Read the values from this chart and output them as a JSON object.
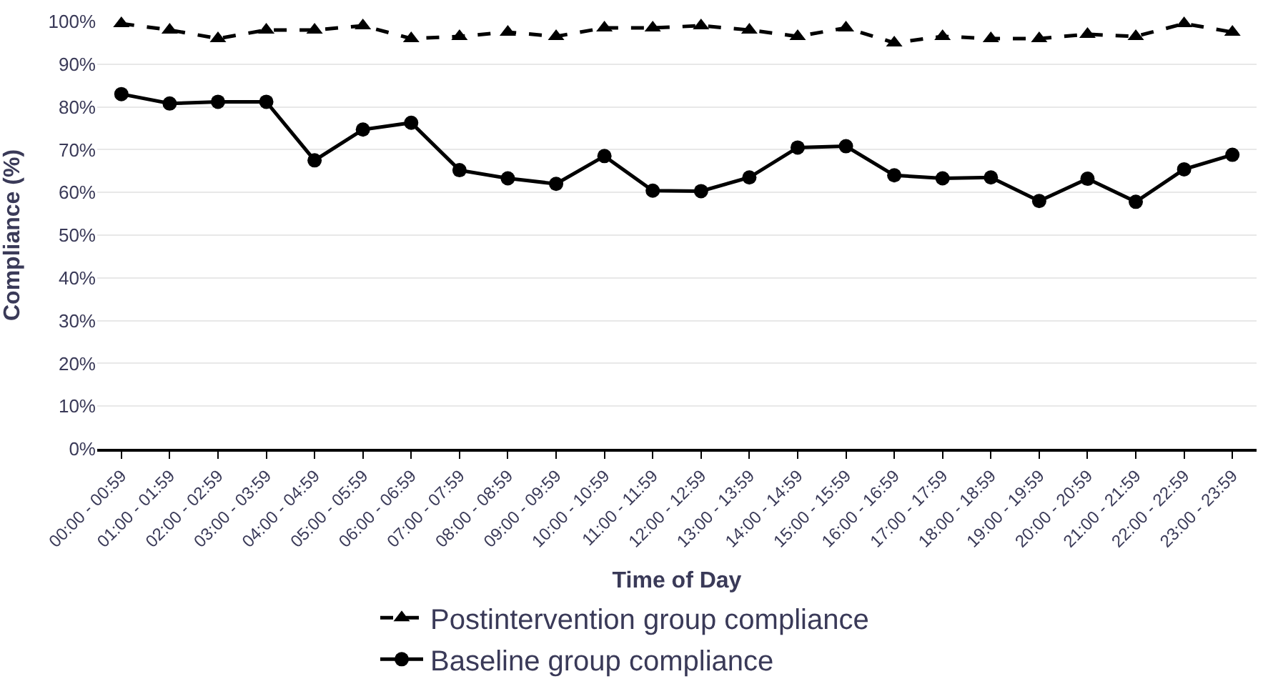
{
  "chart_data": {
    "type": "line",
    "xlabel": "Time of Day",
    "ylabel": "Compliance (%)",
    "categories": [
      "00:00 - 00:59",
      "01:00 - 01:59",
      "02:00 - 02:59",
      "03:00 - 03:59",
      "04:00 - 04:59",
      "05:00 - 05:59",
      "06:00 - 06:59",
      "07:00 - 07:59",
      "08:00 - 08:59",
      "09:00 - 09:59",
      "10:00 - 10:59",
      "11:00 - 11:59",
      "12:00 - 12:59",
      "13:00 - 13:59",
      "14:00 - 14:59",
      "15:00 - 15:59",
      "16:00 - 16:59",
      "17:00 - 17:59",
      "18:00 - 18:59",
      "19:00 - 19:59",
      "20:00 - 20:59",
      "21:00 - 21:59",
      "22:00 - 22:59",
      "23:00 - 23:59"
    ],
    "series": [
      {
        "name": "Postintervention group compliance",
        "color": "#000000",
        "marker": "triangle",
        "line_style": "dashed",
        "values": [
          99.5,
          98,
          96,
          98,
          98,
          99,
          96,
          96.5,
          97.5,
          96.5,
          98.5,
          98.5,
          99,
          98,
          96.5,
          98.5,
          95,
          96.5,
          96,
          96,
          97,
          96.5,
          99.5,
          97.5
        ]
      },
      {
        "name": "Baseline group compliance",
        "color": "#000000",
        "marker": "circle",
        "line_style": "solid",
        "values": [
          83,
          80.8,
          81.2,
          81.2,
          67.5,
          74.7,
          76.3,
          65.2,
          63.3,
          62,
          68.5,
          60.4,
          60.3,
          63.5,
          70.5,
          70.8,
          64,
          63.3,
          63.5,
          58,
          63.2,
          57.8,
          65.4,
          68.8
        ]
      }
    ],
    "ylim": [
      0,
      100
    ],
    "yticks": [
      {
        "value": 0,
        "label": "0%"
      },
      {
        "value": 10,
        "label": "10%"
      },
      {
        "value": 20,
        "label": "20%"
      },
      {
        "value": 30,
        "label": "30%"
      },
      {
        "value": 40,
        "label": "40%"
      },
      {
        "value": 50,
        "label": "50%"
      },
      {
        "value": 60,
        "label": "60%"
      },
      {
        "value": 70,
        "label": "70%"
      },
      {
        "value": 80,
        "label": "80%"
      },
      {
        "value": 90,
        "label": "90%"
      },
      {
        "value": 100,
        "label": "100%"
      }
    ],
    "grid": "y",
    "legend": "bottom"
  }
}
